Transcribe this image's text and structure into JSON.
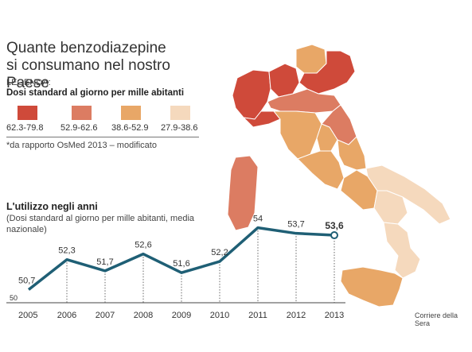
{
  "title_line1": "Quante benzodiazepine",
  "title_line2": "si consumano nel nostro Paese",
  "legend": {
    "heading": "LEGENDA:",
    "subtitle": "Dosi standard al giorno per mille abitanti",
    "note": "*da rapporto OsMed 2013 – modificato",
    "classes": [
      {
        "range": "62.3-79.8",
        "color": "#cf4a3a"
      },
      {
        "range": "52.9-62.6",
        "color": "#dc7c62"
      },
      {
        "range": "38.6-52.9",
        "color": "#e8a767"
      },
      {
        "range": "27.9-38.6",
        "color": "#f5d9bd"
      }
    ]
  },
  "chart_data": {
    "type": "line",
    "title": "L'utilizzo negli anni",
    "subtitle": "(Dosi standard al giorno per mille abitanti, media nazionale)",
    "x": [
      "2005",
      "2006",
      "2007",
      "2008",
      "2009",
      "2010",
      "2011",
      "2012",
      "2013"
    ],
    "labels": [
      "50,7",
      "52,3",
      "51,7",
      "52,6",
      "51,6",
      "52,2",
      "54",
      "53,7",
      "53,6"
    ],
    "values": [
      50.7,
      52.3,
      51.7,
      52.6,
      51.6,
      52.2,
      54.0,
      53.7,
      53.6
    ],
    "y_axis_label": "50",
    "ylim": [
      50,
      54
    ],
    "line_color": "#1f5f75",
    "highlight_last": true
  },
  "source": "Corriere della Sera"
}
